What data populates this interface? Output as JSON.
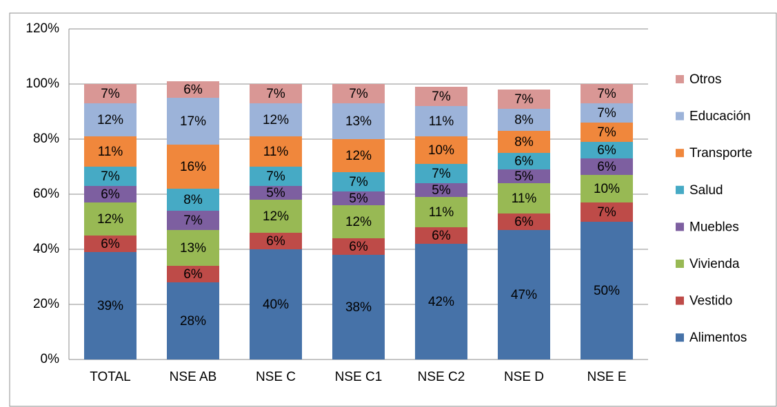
{
  "chart_data": {
    "type": "stacked_bar",
    "categories": [
      "TOTAL",
      "NSE AB",
      "NSE C",
      "NSE C1",
      "NSE C2",
      "NSE D",
      "NSE E"
    ],
    "series": [
      {
        "name": "Alimentos",
        "color": "#4672a8",
        "values": [
          39,
          28,
          40,
          38,
          42,
          47,
          50
        ],
        "value_labels": [
          "39%",
          "28%",
          "40%",
          "38%",
          "42%",
          "47%",
          "50%"
        ]
      },
      {
        "name": "Vestido",
        "color": "#be4b48",
        "values": [
          6,
          6,
          6,
          6,
          6,
          6,
          7
        ],
        "value_labels": [
          "6%",
          "6%",
          "6%",
          "6%",
          "6%",
          "6%",
          "7%"
        ]
      },
      {
        "name": "Vivienda",
        "color": "#98b954",
        "values": [
          12,
          13,
          12,
          12,
          11,
          11,
          10
        ],
        "value_labels": [
          "12%",
          "13%",
          "12%",
          "12%",
          "11%",
          "11%",
          "10%"
        ]
      },
      {
        "name": "Muebles",
        "color": "#7d5fa0",
        "values": [
          6,
          7,
          5,
          5,
          5,
          5,
          6
        ],
        "value_labels": [
          "6%",
          "7%",
          "5%",
          "5%",
          "5%",
          "5%",
          "6%"
        ]
      },
      {
        "name": "Salud",
        "color": "#46aac5",
        "values": [
          7,
          8,
          7,
          7,
          7,
          6,
          6
        ],
        "value_labels": [
          "7%",
          "8%",
          "7%",
          "7%",
          "7%",
          "6%",
          "6%"
        ]
      },
      {
        "name": "Transporte",
        "color": "#f0873c",
        "values": [
          11,
          16,
          11,
          12,
          10,
          8,
          7
        ],
        "value_labels": [
          "11%",
          "16%",
          "11%",
          "12%",
          "10%",
          "8%",
          "7%"
        ]
      },
      {
        "name": "Educación",
        "color": "#9cb3d9",
        "values": [
          12,
          17,
          12,
          13,
          11,
          8,
          7
        ],
        "value_labels": [
          "12%",
          "17%",
          "12%",
          "13%",
          "11%",
          "8%",
          "7%"
        ]
      },
      {
        "name": "Otros",
        "color": "#d99795",
        "values": [
          7,
          6,
          7,
          7,
          7,
          7,
          7
        ],
        "value_labels": [
          "7%",
          "6%",
          "7%",
          "7%",
          "7%",
          "7%",
          "7%"
        ]
      }
    ],
    "ylim": [
      0,
      120
    ],
    "yticks": [
      {
        "value": 0,
        "label": "0%"
      },
      {
        "value": 20,
        "label": "20%"
      },
      {
        "value": 40,
        "label": "40%"
      },
      {
        "value": 60,
        "label": "60%"
      },
      {
        "value": 80,
        "label": "80%"
      },
      {
        "value": 100,
        "label": "100%"
      },
      {
        "value": 120,
        "label": "120%"
      }
    ],
    "grid": true,
    "legend": "right"
  }
}
